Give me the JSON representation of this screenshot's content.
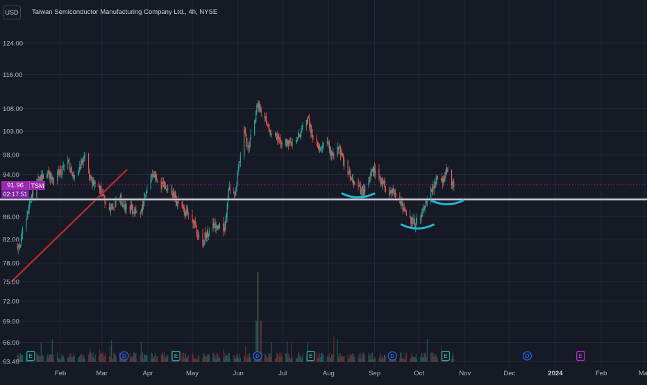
{
  "header": {
    "currency": "USD",
    "title": "Taiwan Semiconductor Manufacturing Company Ltd., 4h, NYSE"
  },
  "price_badge": {
    "price": "91.96",
    "symbol": "TSM",
    "countdown": "02:17:51"
  },
  "colors": {
    "background": "#161a25",
    "grid": "#232736",
    "up_candle": "#26a69a",
    "down_candle": "#ef5350",
    "current_price_line": "#9c27b0",
    "support_line": "#d1d4dc",
    "trend_line": "#b22833",
    "highlight_arcs": "#22b5d6",
    "text": "#b2b5be"
  },
  "chart_data": {
    "type": "candlestick",
    "title": "Taiwan Semiconductor Manufacturing Company Ltd., 4h, NYSE",
    "symbol": "TSM",
    "interval": "4h",
    "exchange": "NYSE",
    "currency": "USD",
    "y_scale": "log",
    "ylim": [
      63.4,
      127
    ],
    "y_ticks": [
      "124.00",
      "116.00",
      "108.00",
      "103.00",
      "98.00",
      "94.00",
      "86.00",
      "82.00",
      "78.00",
      "75.00",
      "72.00",
      "69.00",
      "66.00",
      "63.40"
    ],
    "y_tick_values": [
      124,
      116,
      108,
      103,
      98,
      94,
      86,
      82,
      78,
      75,
      72,
      69,
      66,
      63.4
    ],
    "x_ticks": [
      "Feb",
      "Mar",
      "Apr",
      "May",
      "Jun",
      "Jul",
      "Aug",
      "Sep",
      "Oct",
      "Nov",
      "Dec",
      "2024",
      "Feb",
      "Mar"
    ],
    "x_tick_dates": [
      "2023-02-01",
      "2023-03-01",
      "2023-04-01",
      "2023-05-01",
      "2023-06-01",
      "2023-07-01",
      "2023-08-01",
      "2023-09-01",
      "2023-10-01",
      "2023-11-01",
      "2023-12-01",
      "2024-01-01",
      "2024-02-01",
      "2024-03-01"
    ],
    "grid": true,
    "current_price": 91.96,
    "support_level": 89.2,
    "price_path": [
      [
        "2023-01-03",
        80.5
      ],
      [
        "2023-01-05",
        81.5
      ],
      [
        "2023-01-09",
        86.0
      ],
      [
        "2023-01-13",
        90.0
      ],
      [
        "2023-01-18",
        93.0
      ],
      [
        "2023-01-23",
        94.5
      ],
      [
        "2023-01-27",
        93.0
      ],
      [
        "2023-02-02",
        95.0
      ],
      [
        "2023-02-06",
        97.0
      ],
      [
        "2023-02-09",
        93.5
      ],
      [
        "2023-02-14",
        95.5
      ],
      [
        "2023-02-17",
        97.8
      ],
      [
        "2023-02-22",
        92.5
      ],
      [
        "2023-02-27",
        91.5
      ],
      [
        "2023-03-03",
        89.0
      ],
      [
        "2023-03-08",
        87.5
      ],
      [
        "2023-03-13",
        89.5
      ],
      [
        "2023-03-16",
        88.0
      ],
      [
        "2023-03-21",
        87.5
      ],
      [
        "2023-03-27",
        86.0
      ],
      [
        "2023-03-30",
        89.5
      ],
      [
        "2023-04-04",
        94.5
      ],
      [
        "2023-04-07",
        93.0
      ],
      [
        "2023-04-12",
        91.5
      ],
      [
        "2023-04-17",
        90.5
      ],
      [
        "2023-04-21",
        88.5
      ],
      [
        "2023-04-26",
        87.0
      ],
      [
        "2023-05-01",
        86.0
      ],
      [
        "2023-05-04",
        83.0
      ],
      [
        "2023-05-08",
        81.5
      ],
      [
        "2023-05-11",
        83.0
      ],
      [
        "2023-05-16",
        84.5
      ],
      [
        "2023-05-19",
        84.5
      ],
      [
        "2023-05-23",
        83.5
      ],
      [
        "2023-05-26",
        92.0
      ],
      [
        "2023-05-30",
        90.0
      ],
      [
        "2023-06-01",
        95.5
      ],
      [
        "2023-06-05",
        102.5
      ],
      [
        "2023-06-08",
        100.0
      ],
      [
        "2023-06-12",
        104.5
      ],
      [
        "2023-06-14",
        109.0
      ],
      [
        "2023-06-19",
        106.5
      ],
      [
        "2023-06-22",
        103.0
      ],
      [
        "2023-06-27",
        101.5
      ],
      [
        "2023-06-30",
        101.0
      ],
      [
        "2023-07-06",
        100.0
      ],
      [
        "2023-07-11",
        101.5
      ],
      [
        "2023-07-14",
        103.5
      ],
      [
        "2023-07-18",
        106.0
      ],
      [
        "2023-07-21",
        102.0
      ],
      [
        "2023-07-26",
        99.5
      ],
      [
        "2023-07-31",
        100.5
      ],
      [
        "2023-08-03",
        98.0
      ],
      [
        "2023-08-08",
        99.5
      ],
      [
        "2023-08-11",
        96.5
      ],
      [
        "2023-08-16",
        93.5
      ],
      [
        "2023-08-21",
        91.5
      ],
      [
        "2023-08-24",
        90.0
      ],
      [
        "2023-08-29",
        94.0
      ],
      [
        "2023-09-01",
        94.8
      ],
      [
        "2023-09-06",
        92.5
      ],
      [
        "2023-09-11",
        90.5
      ],
      [
        "2023-09-14",
        91.0
      ],
      [
        "2023-09-19",
        88.5
      ],
      [
        "2023-09-22",
        86.5
      ],
      [
        "2023-09-27",
        84.8
      ],
      [
        "2023-10-02",
        86.0
      ],
      [
        "2023-10-05",
        88.5
      ],
      [
        "2023-10-10",
        91.0
      ],
      [
        "2023-10-13",
        93.0
      ],
      [
        "2023-10-17",
        92.0
      ],
      [
        "2023-10-19",
        95.0
      ],
      [
        "2023-10-24",
        91.96
      ]
    ],
    "annotations": [
      {
        "type": "trend_line",
        "from": [
          "2022-12-30",
          75.0
        ],
        "to": [
          "2023-03-18",
          95.0
        ]
      },
      {
        "type": "horizontal_line",
        "price": 89.2
      },
      {
        "type": "arc",
        "date": "2023-08-21",
        "price": 89.9
      },
      {
        "type": "arc",
        "date": "2023-09-30",
        "price": 84.2
      },
      {
        "type": "arc",
        "date": "2023-10-20",
        "price": 88.6
      }
    ],
    "event_markers": [
      {
        "date": "2023-01-12",
        "kind": "E"
      },
      {
        "date": "2023-03-16",
        "kind": "D"
      },
      {
        "date": "2023-04-20",
        "kind": "E"
      },
      {
        "date": "2023-06-14",
        "kind": "D"
      },
      {
        "date": "2023-07-20",
        "kind": "E"
      },
      {
        "date": "2023-09-13",
        "kind": "D"
      },
      {
        "date": "2023-10-19",
        "kind": "E"
      },
      {
        "date": "2023-12-13",
        "kind": "D"
      },
      {
        "date": "2024-01-18",
        "kind": "E",
        "upcoming": true
      }
    ]
  }
}
